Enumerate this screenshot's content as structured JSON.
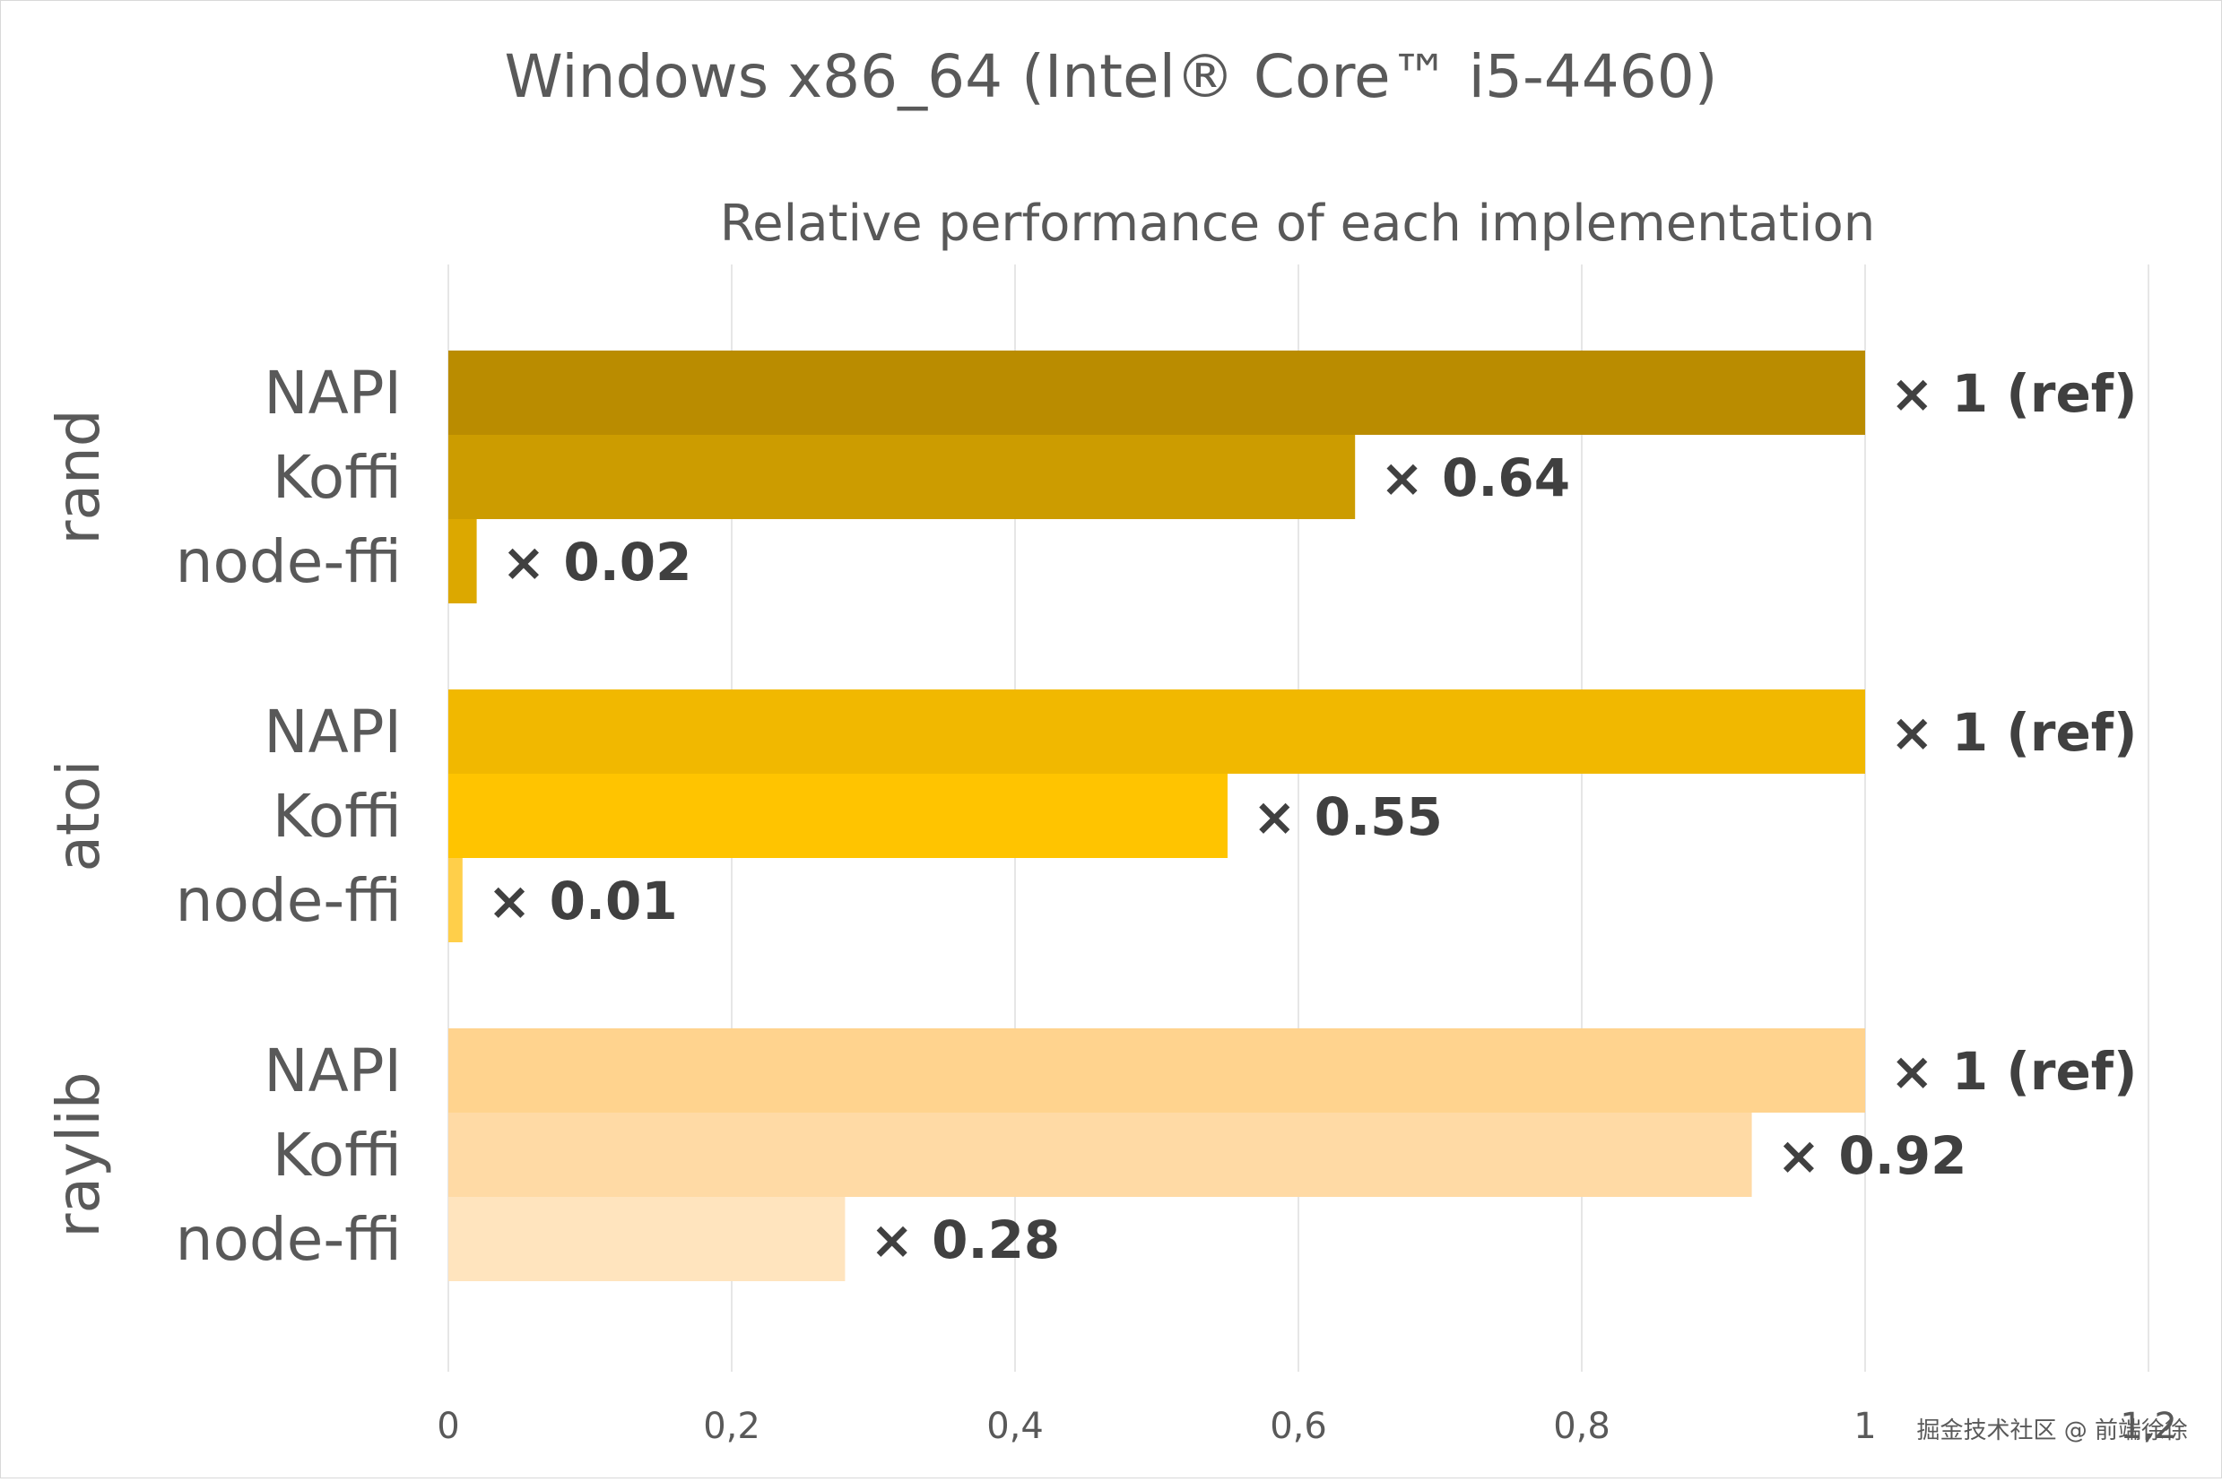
{
  "chart_data": {
    "type": "bar",
    "orientation": "horizontal",
    "title": "Windows x86_64 (Intel® Core™ i5-4460)",
    "subtitle": "Relative performance of each implementation",
    "xlim": [
      0,
      1.2
    ],
    "x_ticks": [
      0,
      0.2,
      0.4,
      0.6,
      0.8,
      1,
      1.2
    ],
    "x_tick_labels": [
      "0",
      "0,2",
      "0,4",
      "0,6",
      "0,8",
      "1",
      "1,2"
    ],
    "grid": "vertical gridlines",
    "legend": "none",
    "groups": [
      {
        "name": "rand",
        "bars": [
          {
            "label": "NAPI",
            "value": 1.0,
            "data_label": "× 1 (ref)",
            "color": "#BA8C00"
          },
          {
            "label": "Koffi",
            "value": 0.64,
            "data_label": "× 0.64",
            "color": "#CC9C00"
          },
          {
            "label": "node-ffi",
            "value": 0.02,
            "data_label": "× 0.02",
            "color": "#DCA800"
          }
        ]
      },
      {
        "name": "atoi",
        "bars": [
          {
            "label": "NAPI",
            "value": 1.0,
            "data_label": "× 1 (ref)",
            "color": "#F1B800"
          },
          {
            "label": "Koffi",
            "value": 0.55,
            "data_label": "× 0.55",
            "color": "#FFC400"
          },
          {
            "label": "node-ffi",
            "value": 0.01,
            "data_label": "× 0.01",
            "color": "#FFCF4A"
          }
        ]
      },
      {
        "name": "raylib",
        "bars": [
          {
            "label": "NAPI",
            "value": 1.0,
            "data_label": "× 1 (ref)",
            "color": "#FFD38E"
          },
          {
            "label": "Koffi",
            "value": 0.92,
            "data_label": "× 0.92",
            "color": "#FFDAA5"
          },
          {
            "label": "node-ffi",
            "value": 0.28,
            "data_label": "× 0.28",
            "color": "#FFE4BE"
          }
        ]
      }
    ]
  },
  "watermark": "掘金技术社区 @ 前端徐徐"
}
